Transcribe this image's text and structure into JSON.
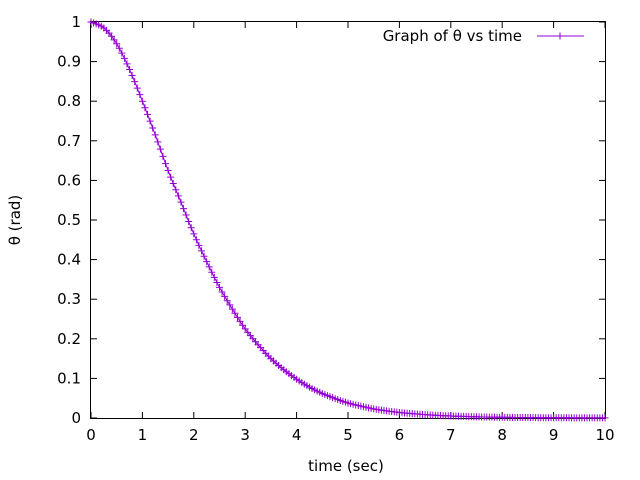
{
  "chart_data": {
    "type": "line",
    "title": "",
    "xlabel": "time (sec)",
    "ylabel": "θ (rad)",
    "xlim": [
      0,
      10
    ],
    "ylim": [
      0,
      1
    ],
    "x_ticks": [
      "0",
      "1",
      "2",
      "3",
      "4",
      "5",
      "6",
      "7",
      "8",
      "9",
      "10"
    ],
    "y_ticks": [
      "0",
      "0.1",
      "0.2",
      "0.3",
      "0.4",
      "0.5",
      "0.6",
      "0.7",
      "0.8",
      "0.9",
      "1"
    ],
    "grid": false,
    "legend_position": "top-right",
    "marker": "plus",
    "series": [
      {
        "name": "Graph of θ vs time",
        "color": "#9400d3",
        "x": [
          0,
          0.25,
          0.5,
          0.75,
          1.0,
          1.25,
          1.5,
          1.75,
          2.0,
          2.25,
          2.5,
          2.75,
          3.0,
          3.25,
          3.5,
          3.75,
          4.0,
          4.25,
          4.5,
          4.75,
          5.0,
          5.25,
          5.5,
          5.75,
          6.0,
          6.25,
          6.5,
          6.75,
          7.0,
          7.25,
          7.5,
          7.75,
          8.0,
          8.25,
          8.5,
          8.75,
          9.0,
          9.25,
          9.5,
          9.75,
          10.0
        ],
        "y": [
          1.0,
          0.985,
          0.945,
          0.88,
          0.8,
          0.715,
          0.625,
          0.545,
          0.465,
          0.395,
          0.33,
          0.275,
          0.225,
          0.185,
          0.15,
          0.122,
          0.098,
          0.078,
          0.062,
          0.049,
          0.038,
          0.03,
          0.023,
          0.018,
          0.014,
          0.011,
          0.0085,
          0.0065,
          0.005,
          0.004,
          0.003,
          0.0023,
          0.0018,
          0.0014,
          0.0011,
          0.0008,
          0.0006,
          0.0005,
          0.0004,
          0.0003,
          0.0002
        ]
      }
    ]
  }
}
